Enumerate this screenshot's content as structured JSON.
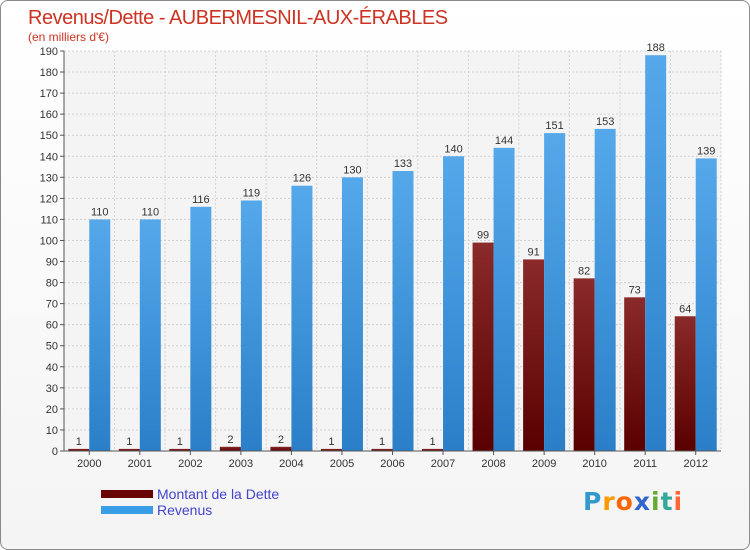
{
  "chart_data": {
    "type": "bar",
    "title": "Revenus/Dette - AUBERMESNIL-AUX-ÉRABLES",
    "subtitle": "(en milliers d'€)",
    "xlabel": "",
    "ylabel": "(en milliers d'€)",
    "ylim": [
      0,
      190
    ],
    "yticks": [
      0,
      10,
      20,
      30,
      40,
      50,
      60,
      70,
      80,
      90,
      100,
      110,
      120,
      130,
      140,
      150,
      160,
      170,
      180,
      190
    ],
    "grid": true,
    "legend_position": "bottom-left",
    "categories": [
      "2000",
      "2001",
      "2002",
      "2003",
      "2004",
      "2005",
      "2006",
      "2007",
      "2008",
      "2009",
      "2010",
      "2011",
      "2012"
    ],
    "series": [
      {
        "name": "Montant de la Dette",
        "color": "#7a0a0a",
        "values": [
          1,
          1,
          1,
          2,
          2,
          1,
          1,
          1,
          99,
          91,
          82,
          73,
          64
        ]
      },
      {
        "name": "Revenus",
        "color": "#3a9ee6",
        "values": [
          110,
          110,
          116,
          119,
          126,
          130,
          133,
          140,
          144,
          151,
          153,
          188,
          139
        ]
      }
    ]
  },
  "brand": {
    "letters": [
      "P",
      "r",
      "o",
      "x",
      "i",
      "t",
      "i"
    ],
    "colors": [
      "#3399cc",
      "#ff9900",
      "#ff6600",
      "#3366cc",
      "#66aa33",
      "#33aa99",
      "#ff6633"
    ]
  }
}
